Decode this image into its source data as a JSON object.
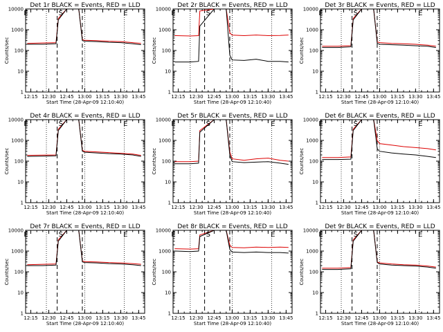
{
  "chart_data": {
    "type": "line",
    "yscale": "log",
    "ylim": [
      1,
      10000
    ],
    "x_range": [
      "12:10:40",
      "13:50:00"
    ],
    "yticks": [
      "1",
      "10",
      "100",
      "1000",
      "10000"
    ],
    "xticks": [
      "12:15",
      "12:30",
      "12:45",
      "13:00",
      "13:15",
      "13:30",
      "13:45"
    ],
    "xlabel": "Start Time (28-Apr-09 12:10:40)",
    "ylabel": "Counts/sec",
    "grid": false,
    "series_colors": {
      "events": "#000000",
      "lld": "#dd0000"
    },
    "marker_labels": [
      "S",
      "E"
    ],
    "panels": [
      {
        "title": "Det 1r BLACK = Events, RED = LLD",
        "dotted_lines": [
          "12:28",
          "13:00",
          "13:33"
        ],
        "dashed_lines": [
          "12:37",
          "12:58"
        ],
        "markers": [
          {
            "label": "E",
            "x": "12:11"
          },
          {
            "label": "S",
            "x": "12:40"
          },
          {
            "label": "E",
            "x": "13:34"
          }
        ],
        "series": [
          {
            "name": "Events",
            "x": [
              "12:12",
              "12:25",
              "12:36",
              "12:38",
              "12:45",
              "12:55",
              "12:58",
              "13:00",
              "13:10",
              "13:20",
              "13:30",
              "13:40",
              "13:47"
            ],
            "y": [
              200,
              200,
              210,
              3000,
              12000,
              12000,
              300,
              280,
              270,
              250,
              240,
              210,
              190
            ]
          },
          {
            "name": "LLD",
            "x": [
              "12:12",
              "12:25",
              "12:36",
              "12:38",
              "12:45",
              "12:55",
              "12:58",
              "13:00",
              "13:10",
              "13:20",
              "13:30",
              "13:40",
              "13:47"
            ],
            "y": [
              220,
              230,
              240,
              3500,
              12000,
              12000,
              330,
              310,
              300,
              280,
              270,
              240,
              220
            ]
          }
        ]
      },
      {
        "title": "Det 2r BLACK = Events, RED = LLD",
        "dotted_lines": [
          "12:25",
          "13:00",
          "13:33"
        ],
        "dashed_lines": [
          "12:37",
          "12:58"
        ],
        "markers": [
          {
            "label": "E",
            "x": "12:11"
          },
          {
            "label": "S",
            "x": "12:40"
          },
          {
            "label": "E",
            "x": "13:34"
          }
        ],
        "series": [
          {
            "name": "Events",
            "x": [
              "12:12",
              "12:25",
              "12:32",
              "12:33",
              "12:45",
              "12:55",
              "12:58",
              "13:00",
              "13:10",
              "13:20",
              "13:30",
              "13:40",
              "13:47"
            ],
            "y": [
              28,
              28,
              30,
              1500,
              12000,
              12000,
              60,
              35,
              33,
              38,
              30,
              30,
              28
            ]
          },
          {
            "name": "LLD",
            "x": [
              "12:12",
              "12:25",
              "12:32",
              "12:33",
              "12:45",
              "12:55",
              "12:58",
              "13:00",
              "13:10",
              "13:20",
              "13:30",
              "13:40",
              "13:47"
            ],
            "y": [
              520,
              500,
              520,
              8000,
              12000,
              12000,
              700,
              550,
              520,
              560,
              520,
              530,
              560
            ]
          }
        ]
      },
      {
        "title": "Det 3r BLACK = Events, RED = LLD",
        "dotted_lines": [
          "12:28",
          "13:00",
          "13:33"
        ],
        "dashed_lines": [
          "12:37",
          "12:58"
        ],
        "markers": [
          {
            "label": "E",
            "x": "12:11"
          },
          {
            "label": "S",
            "x": "12:40"
          },
          {
            "label": "E",
            "x": "13:34"
          }
        ],
        "series": [
          {
            "name": "Events",
            "x": [
              "12:12",
              "12:25",
              "12:36",
              "12:38",
              "12:45",
              "12:55",
              "12:58",
              "13:00",
              "13:10",
              "13:20",
              "13:30",
              "13:40",
              "13:47"
            ],
            "y": [
              140,
              140,
              150,
              3000,
              12000,
              12000,
              220,
              200,
              190,
              180,
              170,
              160,
              140
            ]
          },
          {
            "name": "LLD",
            "x": [
              "12:12",
              "12:25",
              "12:36",
              "12:38",
              "12:45",
              "12:55",
              "12:58",
              "13:00",
              "13:10",
              "13:20",
              "13:30",
              "13:40",
              "13:47"
            ],
            "y": [
              160,
              160,
              170,
              3500,
              12000,
              12000,
              260,
              240,
              220,
              210,
              200,
              180,
              160
            ]
          }
        ]
      },
      {
        "title": "Det 4r BLACK = Events, RED = LLD",
        "dotted_lines": [
          "12:28",
          "13:00",
          "13:33"
        ],
        "dashed_lines": [
          "12:37",
          "12:58"
        ],
        "markers": [
          {
            "label": "E",
            "x": "12:11"
          },
          {
            "label": "S",
            "x": "12:40"
          },
          {
            "label": "E",
            "x": "13:34"
          }
        ],
        "series": [
          {
            "name": "Events",
            "x": [
              "12:12",
              "12:25",
              "12:36",
              "12:38",
              "12:45",
              "12:55",
              "12:58",
              "13:00",
              "13:10",
              "13:20",
              "13:30",
              "13:40",
              "13:47"
            ],
            "y": [
              170,
              175,
              180,
              3000,
              12000,
              12000,
              300,
              270,
              250,
              230,
              220,
              200,
              170
            ]
          },
          {
            "name": "LLD",
            "x": [
              "12:12",
              "12:25",
              "12:36",
              "12:38",
              "12:45",
              "12:55",
              "12:58",
              "13:00",
              "13:10",
              "13:20",
              "13:30",
              "13:40",
              "13:47"
            ],
            "y": [
              190,
              195,
              200,
              3500,
              12000,
              12000,
              330,
              300,
              280,
              260,
              240,
              220,
              190
            ]
          }
        ]
      },
      {
        "title": "Det 5r BLACK = Events, RED = LLD",
        "dotted_lines": [
          "12:25",
          "13:00",
          "13:33"
        ],
        "dashed_lines": [
          "12:37",
          "12:58"
        ],
        "markers": [
          {
            "label": "E",
            "x": "12:11"
          },
          {
            "label": "S",
            "x": "12:40"
          },
          {
            "label": "E",
            "x": "13:34"
          }
        ],
        "series": [
          {
            "name": "Events",
            "x": [
              "12:12",
              "12:25",
              "12:32",
              "12:33",
              "12:45",
              "12:55",
              "12:58",
              "13:00",
              "13:10",
              "13:20",
              "13:30",
              "13:40",
              "13:47"
            ],
            "y": [
              75,
              75,
              80,
              2500,
              12000,
              12000,
              200,
              95,
              85,
              90,
              95,
              80,
              70
            ]
          },
          {
            "name": "LLD",
            "x": [
              "12:12",
              "12:25",
              "12:32",
              "12:33",
              "12:45",
              "12:55",
              "12:58",
              "13:00",
              "13:10",
              "13:20",
              "13:30",
              "13:40",
              "13:47"
            ],
            "y": [
              95,
              95,
              100,
              3000,
              12000,
              12000,
              280,
              130,
              110,
              130,
              140,
              110,
              100
            ]
          }
        ]
      },
      {
        "title": "Det 6r BLACK = Events, RED = LLD",
        "dotted_lines": [
          "12:28",
          "13:00",
          "13:33"
        ],
        "dashed_lines": [
          "12:37",
          "12:58"
        ],
        "markers": [
          {
            "label": "E",
            "x": "12:11"
          },
          {
            "label": "S",
            "x": "12:40"
          },
          {
            "label": "E",
            "x": "13:34"
          }
        ],
        "series": [
          {
            "name": "Events",
            "x": [
              "12:12",
              "12:25",
              "12:36",
              "12:38",
              "12:45",
              "12:55",
              "12:58",
              "13:00",
              "13:10",
              "13:20",
              "13:30",
              "13:40",
              "13:47"
            ],
            "y": [
              120,
              120,
              125,
              3000,
              12000,
              12000,
              400,
              300,
              250,
              220,
              200,
              170,
              150
            ]
          },
          {
            "name": "LLD",
            "x": [
              "12:12",
              "12:25",
              "12:36",
              "12:38",
              "12:45",
              "12:55",
              "12:58",
              "13:00",
              "13:10",
              "13:20",
              "13:30",
              "13:40",
              "13:47"
            ],
            "y": [
              150,
              150,
              160,
              3500,
              12000,
              12000,
              1000,
              700,
              600,
              500,
              450,
              400,
              350
            ]
          }
        ]
      },
      {
        "title": "Det 7r BLACK = Events, RED = LLD",
        "dotted_lines": [
          "12:28",
          "13:00",
          "13:33"
        ],
        "dashed_lines": [
          "12:37",
          "12:58"
        ],
        "markers": [
          {
            "label": "E",
            "x": "12:11"
          },
          {
            "label": "S",
            "x": "12:40"
          },
          {
            "label": "E",
            "x": "13:34"
          }
        ],
        "series": [
          {
            "name": "Events",
            "x": [
              "12:12",
              "12:25",
              "12:36",
              "12:38",
              "12:45",
              "12:55",
              "12:58",
              "13:00",
              "13:10",
              "13:20",
              "13:30",
              "13:40",
              "13:47"
            ],
            "y": [
              200,
              200,
              210,
              3000,
              12000,
              12000,
              300,
              280,
              270,
              250,
              240,
              220,
              200
            ]
          },
          {
            "name": "LLD",
            "x": [
              "12:12",
              "12:25",
              "12:36",
              "12:38",
              "12:45",
              "12:55",
              "12:58",
              "13:00",
              "13:10",
              "13:20",
              "13:30",
              "13:40",
              "13:47"
            ],
            "y": [
              220,
              230,
              240,
              3500,
              12000,
              12000,
              330,
              310,
              300,
              280,
              270,
              250,
              230
            ]
          }
        ]
      },
      {
        "title": "Det 8r BLACK = Events, RED = LLD",
        "dotted_lines": [
          "12:25",
          "13:00",
          "13:33"
        ],
        "dashed_lines": [
          "12:37",
          "12:58"
        ],
        "markers": [
          {
            "label": "E",
            "x": "12:11"
          },
          {
            "label": "S",
            "x": "12:40"
          },
          {
            "label": "E",
            "x": "13:34"
          }
        ],
        "series": [
          {
            "name": "Events",
            "x": [
              "12:12",
              "12:25",
              "12:32",
              "12:33",
              "12:45",
              "12:55",
              "12:58",
              "13:00",
              "13:10",
              "13:20",
              "13:30",
              "13:40",
              "13:47"
            ],
            "y": [
              1000,
              950,
              1000,
              5000,
              12000,
              12000,
              1200,
              900,
              850,
              900,
              850,
              850,
              800
            ]
          },
          {
            "name": "LLD",
            "x": [
              "12:12",
              "12:25",
              "12:32",
              "12:33",
              "12:45",
              "12:55",
              "12:58",
              "13:00",
              "13:10",
              "13:20",
              "13:30",
              "13:40",
              "13:47"
            ],
            "y": [
              1300,
              1250,
              1300,
              6000,
              12000,
              12000,
              1900,
              1500,
              1450,
              1550,
              1500,
              1550,
              1500
            ]
          }
        ]
      },
      {
        "title": "Det 9r BLACK = Events, RED = LLD",
        "dotted_lines": [
          "12:28",
          "13:00",
          "13:33"
        ],
        "dashed_lines": [
          "12:37",
          "12:58"
        ],
        "markers": [
          {
            "label": "E",
            "x": "12:11"
          },
          {
            "label": "S",
            "x": "12:40"
          },
          {
            "label": "E",
            "x": "13:34"
          }
        ],
        "series": [
          {
            "name": "Events",
            "x": [
              "12:12",
              "12:25",
              "12:36",
              "12:38",
              "12:45",
              "12:55",
              "12:58",
              "13:00",
              "13:10",
              "13:20",
              "13:30",
              "13:40",
              "13:47"
            ],
            "y": [
              130,
              130,
              140,
              3000,
              12000,
              12000,
              280,
              240,
              210,
              200,
              190,
              170,
              150
            ]
          },
          {
            "name": "LLD",
            "x": [
              "12:12",
              "12:25",
              "12:36",
              "12:38",
              "12:45",
              "12:55",
              "12:58",
              "13:00",
              "13:10",
              "13:20",
              "13:30",
              "13:40",
              "13:47"
            ],
            "y": [
              150,
              150,
              160,
              3500,
              12000,
              12000,
              300,
              270,
              240,
              220,
              210,
              190,
              170
            ]
          }
        ]
      }
    ]
  }
}
